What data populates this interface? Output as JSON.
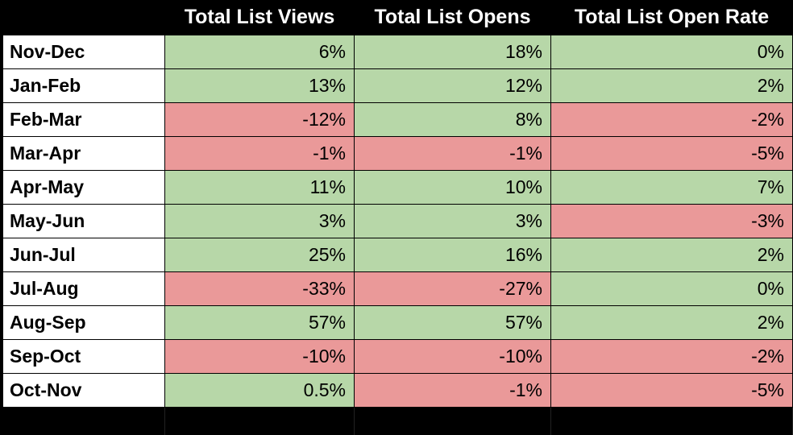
{
  "table": {
    "columns": [
      "Total List Views",
      "Total List Opens",
      "Total List Open Rate"
    ],
    "rows": [
      {
        "label": "Nov-Dec",
        "cells": [
          "6%",
          "18%",
          "0%"
        ]
      },
      {
        "label": "Jan-Feb",
        "cells": [
          "13%",
          "12%",
          "2%"
        ]
      },
      {
        "label": "Feb-Mar",
        "cells": [
          "-12%",
          "8%",
          "-2%"
        ]
      },
      {
        "label": "Mar-Apr",
        "cells": [
          "-1%",
          "-1%",
          "-5%"
        ]
      },
      {
        "label": "Apr-May",
        "cells": [
          "11%",
          "10%",
          "7%"
        ]
      },
      {
        "label": "May-Jun",
        "cells": [
          "3%",
          "3%",
          "-3%"
        ]
      },
      {
        "label": "Jun-Jul",
        "cells": [
          "25%",
          "16%",
          "2%"
        ]
      },
      {
        "label": "Jul-Aug",
        "cells": [
          "-33%",
          "-27%",
          "0%"
        ]
      },
      {
        "label": "Aug-Sep",
        "cells": [
          "57%",
          "57%",
          "2%"
        ]
      },
      {
        "label": "Sep-Oct",
        "cells": [
          "-10%",
          "-10%",
          "-2%"
        ]
      },
      {
        "label": "Oct-Nov",
        "cells": [
          "0.5%",
          "-1%",
          "-5%"
        ]
      }
    ]
  }
}
